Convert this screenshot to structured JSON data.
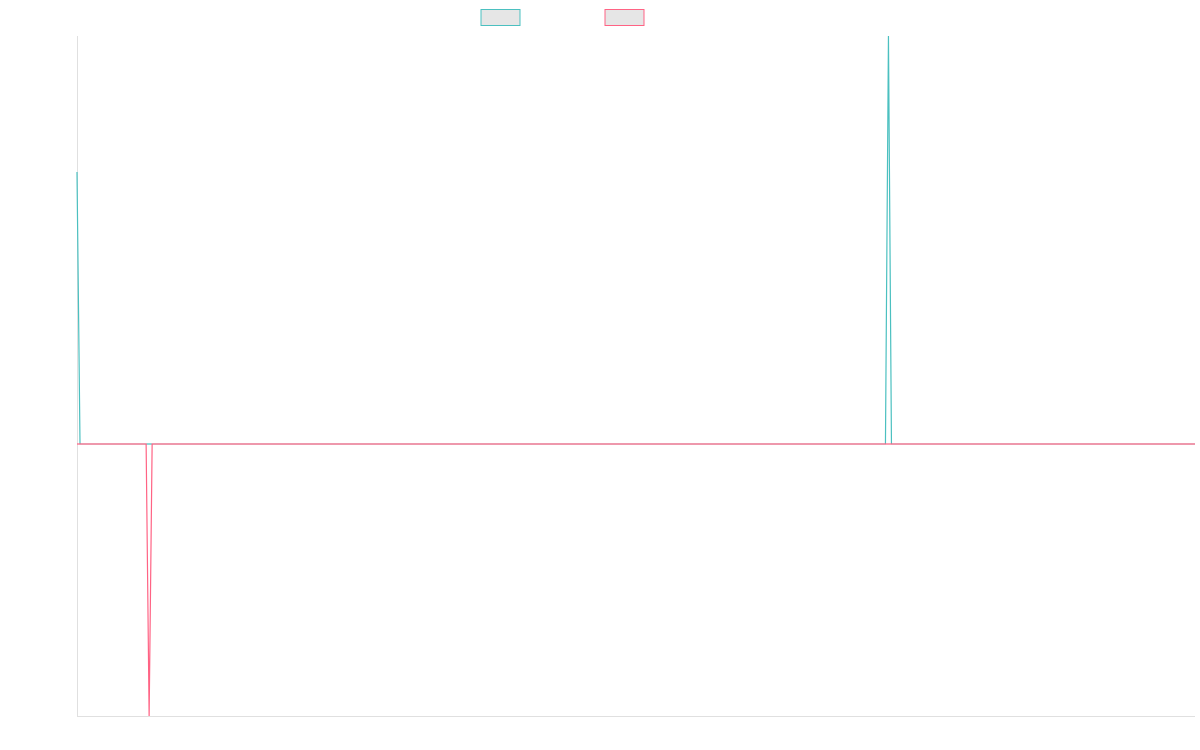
{
  "chart_data": {
    "type": "line",
    "xlim": [
      0,
      372
    ],
    "ylim": [
      -2,
      3
    ],
    "series": [
      {
        "color": "#4bc0c0",
        "x": [
          0,
          1,
          269,
          270,
          271,
          372
        ],
        "values": [
          2,
          0,
          0,
          3,
          0,
          0
        ]
      },
      {
        "color": "#ff6384",
        "x": [
          0,
          23,
          24,
          25,
          372
        ],
        "values": [
          0,
          0,
          -2,
          0,
          0
        ]
      }
    ]
  }
}
